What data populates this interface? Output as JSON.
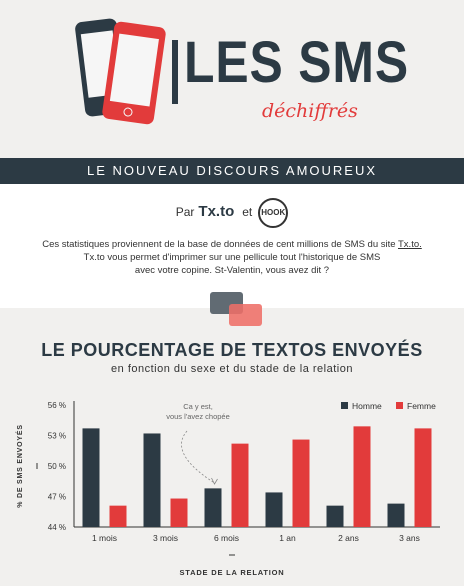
{
  "header": {
    "title": "LES SMS",
    "subtitle": "déchiffrés",
    "icons": [
      "phone-icon",
      "phone-icon"
    ],
    "colors": {
      "dark": "#2c3a44",
      "red": "#e23b3b"
    }
  },
  "banner": {
    "text": "LE NOUVEAU DISCOURS AMOUREUX"
  },
  "intro": {
    "by_label": "Par",
    "brand_1": "Tx.to",
    "and_label": "et",
    "brand_2": "HOOK",
    "line1_pre": "Ces statistiques proviennent de la base de données de cent millions de SMS du site ",
    "line1_link": "Tx.to.",
    "line2": "Tx.to vous permet d'imprimer sur une pellicule tout l'historique de SMS",
    "line3": "avec votre copine. St-Valentin, vous avez dit ?",
    "icon": "chat-bubbles-icon"
  },
  "chart_data": {
    "type": "bar",
    "title": "LE POURCENTAGE DE TEXTOS ENVOYÉS",
    "subtitle": "en fonction du sexe et du stade de la relation",
    "xlabel": "STADE DE LA RELATION",
    "ylabel": "% DE SMS ENVOYÉS",
    "categories": [
      "1 mois",
      "3 mois",
      "6 mois",
      "1 an",
      "2 ans",
      "3 ans"
    ],
    "series": [
      {
        "name": "Homme",
        "color": "#2c3a44",
        "values": [
          53.7,
          53.2,
          47.8,
          47.4,
          46.1,
          46.3
        ]
      },
      {
        "name": "Femme",
        "color": "#e23b3b",
        "values": [
          46.1,
          46.8,
          52.2,
          52.6,
          53.9,
          53.7
        ]
      }
    ],
    "ylim": [
      44,
      56
    ],
    "yticks": [
      56,
      53,
      50,
      47,
      44
    ],
    "ytick_labels": [
      "56 %",
      "53 %",
      "50 %",
      "47 %",
      "44 %"
    ],
    "legend": "top-right",
    "grid": false,
    "annotation": {
      "lines": [
        "Ca y est,",
        "vous l'avez chopée"
      ],
      "category": "6 mois"
    }
  }
}
